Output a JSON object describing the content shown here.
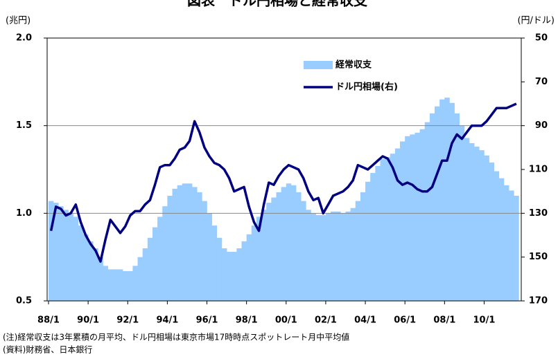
{
  "chart_data": {
    "type": "bar-line",
    "title": "図表　ドル円相場と経常収支",
    "y_label": "(兆円)",
    "y2_label": "(円/ドル)",
    "notes": [
      "(注)経常収支は3年累積の月平均、ドル円相場は東京市場17時時点スポットレート月中平均値",
      "(資料)財務省、日本銀行"
    ],
    "legend": "upper-center",
    "categories": [
      "88/1",
      null,
      null,
      null,
      null,
      null,
      null,
      null,
      "90/1",
      null,
      null,
      null,
      null,
      null,
      null,
      null,
      "92/1",
      null,
      null,
      null,
      null,
      null,
      null,
      null,
      "94/1",
      null,
      null,
      null,
      null,
      null,
      null,
      null,
      "96/1",
      null,
      null,
      null,
      null,
      null,
      null,
      null,
      "98/1",
      null,
      null,
      null,
      null,
      null,
      null,
      null,
      "00/1",
      null,
      null,
      null,
      null,
      null,
      null,
      null,
      "02/1",
      null,
      null,
      null,
      null,
      null,
      null,
      null,
      "04/1",
      null,
      null,
      null,
      null,
      null,
      null,
      null,
      "06/1",
      null,
      null,
      null,
      null,
      null,
      null,
      null,
      "08/1",
      null,
      null,
      null,
      null,
      null,
      null,
      null,
      "10/1",
      null,
      null,
      null,
      null,
      null,
      null
    ],
    "series": [
      {
        "name": "経常収支",
        "color": "#99ccff",
        "kind": "area",
        "values": [
          1.07,
          1.06,
          1.04,
          1.02,
          1.0,
          0.98,
          0.93,
          0.88,
          0.84,
          0.8,
          0.75,
          0.7,
          0.68,
          0.68,
          0.68,
          0.67,
          0.67,
          0.7,
          0.75,
          0.8,
          0.86,
          0.92,
          0.98,
          1.04,
          1.1,
          1.14,
          1.16,
          1.17,
          1.17,
          1.15,
          1.12,
          1.07,
          1.0,
          0.93,
          0.86,
          0.8,
          0.78,
          0.78,
          0.8,
          0.84,
          0.88,
          0.93,
          0.98,
          1.02,
          1.06,
          1.09,
          1.12,
          1.15,
          1.17,
          1.16,
          1.12,
          1.07,
          1.02,
          1.0,
          0.99,
          0.99,
          1.0,
          1.01,
          1.01,
          1.0,
          1.01,
          1.03,
          1.07,
          1.12,
          1.18,
          1.23,
          1.27,
          1.31,
          1.32,
          1.34,
          1.37,
          1.41,
          1.44,
          1.45,
          1.46,
          1.48,
          1.52,
          1.57,
          1.61,
          1.65,
          1.66,
          1.63,
          1.57,
          1.5,
          1.43,
          1.4,
          1.38,
          1.36,
          1.33,
          1.29,
          1.24,
          1.2,
          1.16,
          1.13,
          1.1
        ]
      },
      {
        "name": "ドル円相場(右)",
        "color": "#000080",
        "kind": "line",
        "axis": "y2",
        "values": [
          138,
          127,
          128,
          131,
          130,
          126,
          134,
          140,
          144,
          147,
          152,
          142,
          133,
          136,
          139,
          136,
          131,
          129,
          129,
          126,
          124,
          117,
          109,
          108,
          108,
          105,
          101,
          100,
          97,
          88,
          93,
          100,
          104,
          107,
          108,
          110,
          114,
          120,
          119,
          118,
          127,
          134,
          138,
          126,
          116,
          117,
          113,
          110,
          108,
          109,
          110,
          114,
          120,
          124,
          123,
          130,
          126,
          122,
          121,
          120,
          118,
          115,
          108,
          109,
          110,
          108,
          106,
          104,
          105,
          109,
          115,
          117,
          116,
          117,
          119,
          120,
          120,
          118,
          112,
          106,
          106,
          98,
          94,
          96,
          93,
          90,
          90,
          90,
          88,
          85,
          82,
          82,
          82,
          81,
          80
        ]
      }
    ],
    "ylim": [
      0.5,
      2.0
    ],
    "yticks": [
      0.5,
      {
        "value": 1.0,
        "label": "1.0"
      },
      1.5,
      {
        "value": 2.0,
        "label": "2.0"
      }
    ],
    "y2lim": [
      170,
      50
    ],
    "y2ticks": [
      170,
      150,
      130,
      110,
      90,
      70,
      50
    ],
    "grid": true
  }
}
